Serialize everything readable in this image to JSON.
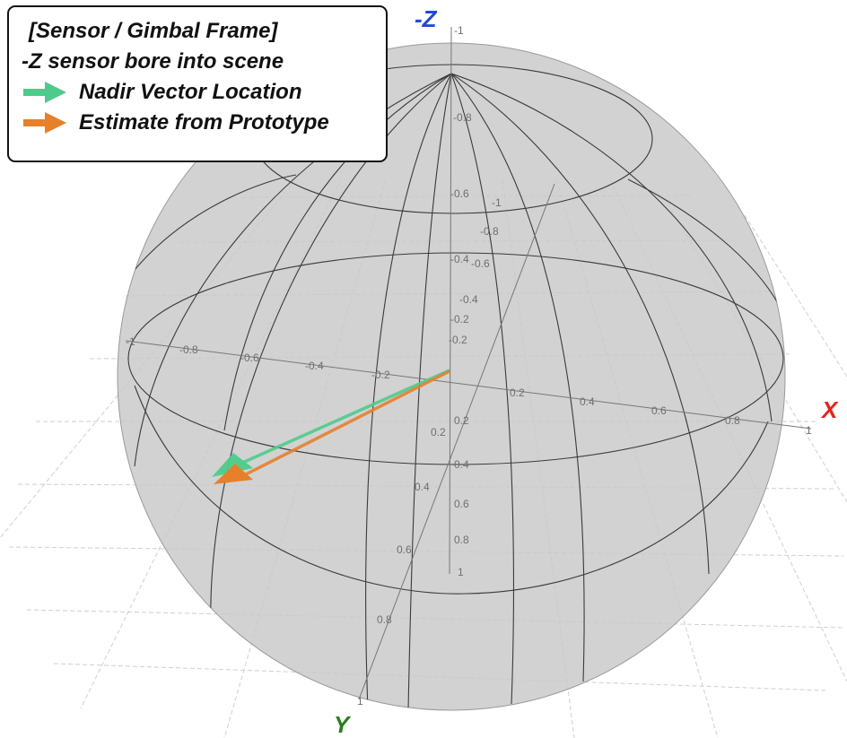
{
  "legend": {
    "title": "[Sensor / Gimbal Frame]",
    "subtitle": "-Z sensor bore into scene",
    "items": [
      {
        "label": "Nadir Vector Location",
        "color": "#4ecb8a",
        "icon": "green-arrow-icon"
      },
      {
        "label": "Estimate from Prototype",
        "color": "#e6802b",
        "icon": "orange-arrow-icon"
      }
    ]
  },
  "axes": {
    "x": {
      "label": "X",
      "color": "#e8231f"
    },
    "y": {
      "label": "Y",
      "color": "#2a7d1c"
    },
    "z": {
      "label": "-Z",
      "color": "#2547d8"
    }
  },
  "ticks": {
    "x": [
      "-1",
      "-0.8",
      "-0.6",
      "-0.4",
      "-0.2",
      "0.2",
      "0.4",
      "0.6",
      "0.8",
      "1"
    ],
    "y": [
      "-1",
      "-0.8",
      "-0.6",
      "-0.4",
      "-0.2",
      "0.2",
      "0.4",
      "0.6",
      "0.8",
      "1"
    ],
    "z": [
      "-1",
      "-0.8",
      "-0.6",
      "-0.4",
      "-0.2",
      "0.2",
      "0.4",
      "0.6",
      "0.8",
      "1"
    ]
  },
  "colors": {
    "sphere_fill": "#c8c8c8",
    "sphere_lines": "#3a3a3a",
    "grid": "#cfcfcf"
  }
}
